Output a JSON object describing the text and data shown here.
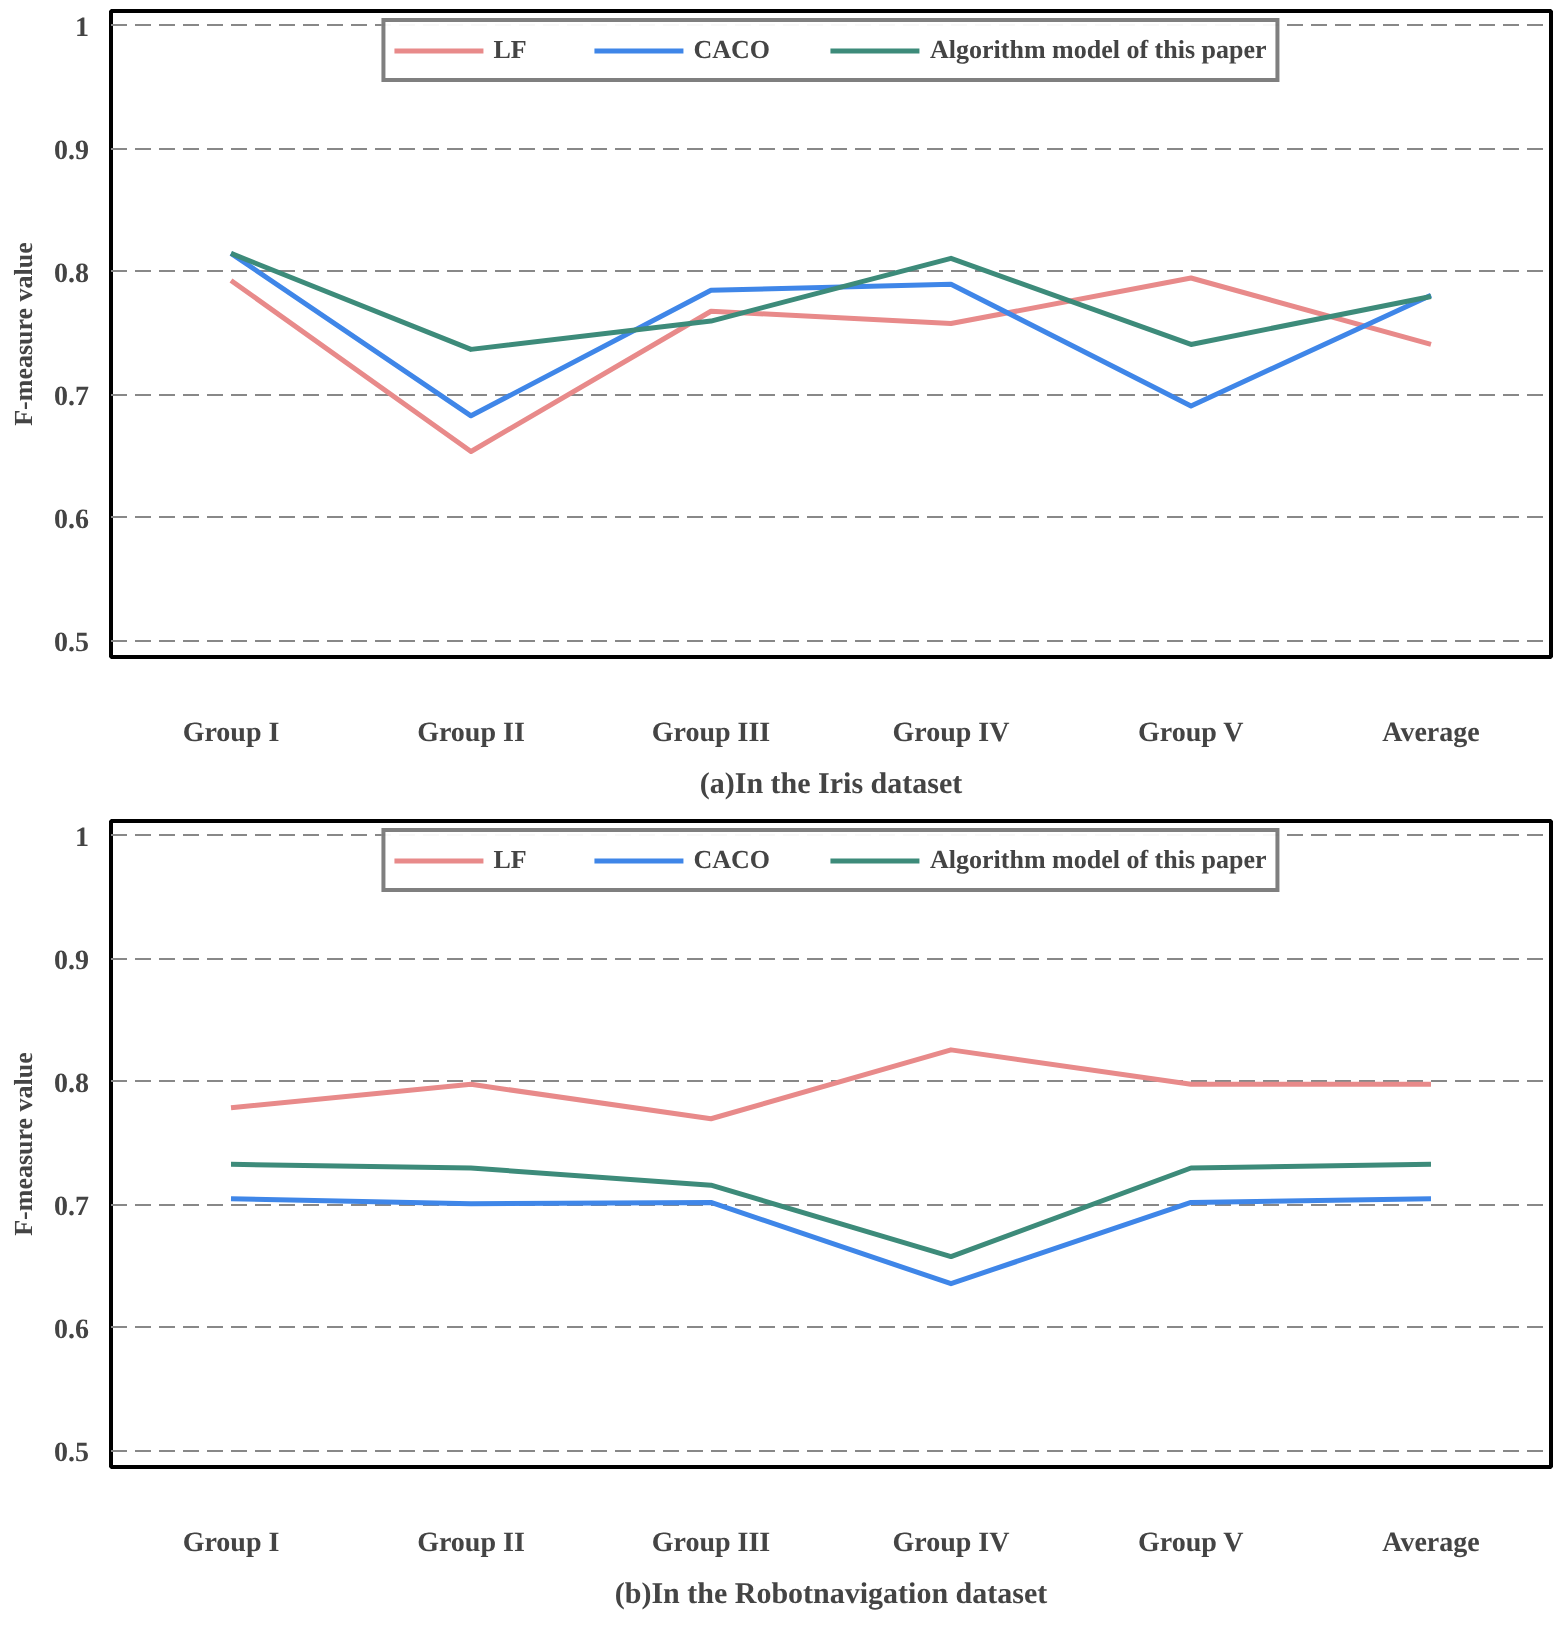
{
  "chart_data": [
    {
      "type": "line",
      "title": "(a)In the Iris dataset",
      "ylabel": "F-measure value",
      "categories": [
        "Group I",
        "Group II",
        "Group III",
        "Group IV",
        "Group V",
        "Average"
      ],
      "ylim": [
        0.487,
        1.012
      ],
      "yticks": [
        0.5,
        0.6,
        0.7,
        0.8,
        0.9,
        {
          "value": 1.0,
          "label": "1"
        }
      ],
      "grid": "y",
      "legend": "top",
      "line_style": "solid",
      "series": [
        {
          "name": "LF",
          "color": "#e88a8a",
          "values": [
            0.793,
            0.654,
            0.768,
            0.758,
            0.795,
            0.741
          ]
        },
        {
          "name": "CACO",
          "color": "#3f86e8",
          "values": [
            0.815,
            0.683,
            0.785,
            0.79,
            0.691,
            0.781
          ]
        },
        {
          "name": "Algorithm model of this paper",
          "color": "#3d8b7a",
          "values": [
            0.815,
            0.737,
            0.76,
            0.811,
            0.741,
            0.78
          ]
        }
      ]
    },
    {
      "type": "line",
      "title": "(b)In the Robotnavigation dataset",
      "ylabel": "F-measure value",
      "categories": [
        "Group I",
        "Group II",
        "Group III",
        "Group IV",
        "Group V",
        "Average"
      ],
      "ylim": [
        0.487,
        1.012
      ],
      "yticks": [
        0.5,
        0.6,
        0.7,
        0.8,
        0.9,
        {
          "value": 1.0,
          "label": "1"
        }
      ],
      "grid": "y",
      "legend": "top",
      "line_style": "solid",
      "series": [
        {
          "name": "LF",
          "color": "#e88a8a",
          "values": [
            0.779,
            0.798,
            0.77,
            0.826,
            0.798,
            0.798
          ]
        },
        {
          "name": "CACO",
          "color": "#3f86e8",
          "values": [
            0.705,
            0.701,
            0.702,
            0.636,
            0.702,
            0.705
          ]
        },
        {
          "name": "Algorithm model of this paper",
          "color": "#3d8b7a",
          "values": [
            0.733,
            0.73,
            0.716,
            0.658,
            0.73,
            0.733
          ]
        }
      ]
    }
  ]
}
